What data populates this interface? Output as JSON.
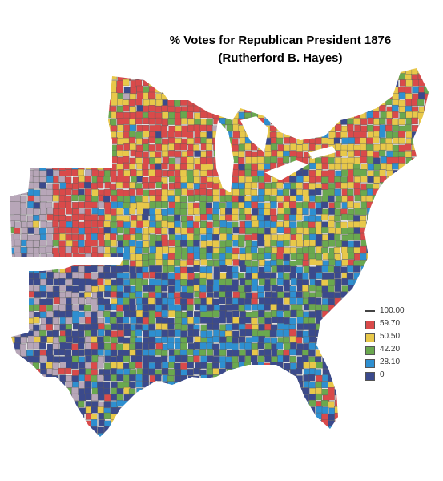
{
  "title": {
    "line1": "% Votes for Republican President 1876",
    "line2": "(Rutherford B. Hayes)"
  },
  "legend": {
    "breaks": [
      "100.00",
      "59.70",
      "50.50",
      "42.20",
      "28.10",
      "0"
    ],
    "bins": [
      {
        "from": 59.7,
        "to": 100.0,
        "color": "#d94a4a"
      },
      {
        "from": 50.5,
        "to": 59.7,
        "color": "#e8c84a"
      },
      {
        "from": 42.2,
        "to": 50.5,
        "color": "#6aa84f"
      },
      {
        "from": 28.1,
        "to": 42.2,
        "color": "#2e8fd0"
      },
      {
        "from": 0,
        "to": 28.1,
        "color": "#3b4a8c"
      }
    ],
    "no_data_color": "#b7a6b8"
  }
}
